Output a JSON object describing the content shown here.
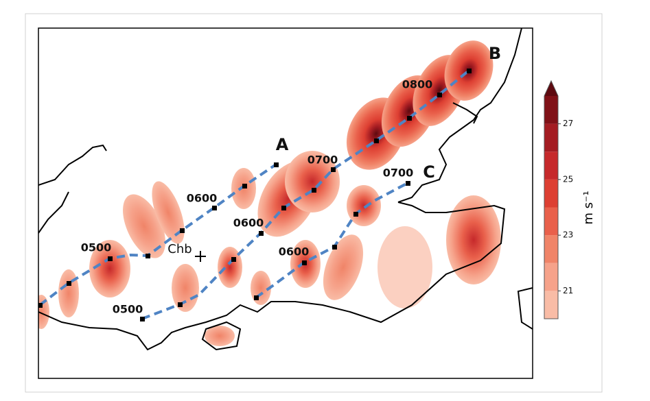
{
  "labels": [
    "B",
    "A",
    "C",
    "0800",
    "0700",
    "0700",
    "0600",
    "0600",
    "0600",
    "0500",
    "0500",
    "Chb"
  ],
  "colorbar": {
    "units": "m s⁻¹",
    "lim": [
      20,
      28
    ],
    "ticks": [
      21,
      23,
      25,
      27
    ],
    "colors": [
      "#f9bca6",
      "#f6a28a",
      "#f08468",
      "#e9604b",
      "#dd3f32",
      "#c6292b",
      "#a41c22",
      "#801117"
    ],
    "extend_color": "#5e0a10"
  }
}
